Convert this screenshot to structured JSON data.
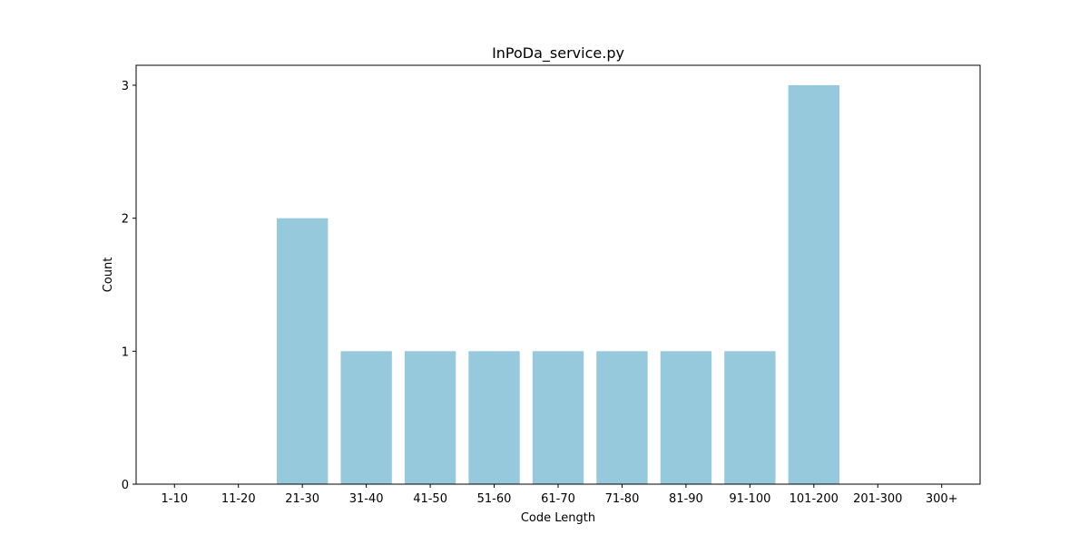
{
  "chart_data": {
    "type": "bar",
    "title": "InPoDa_service.py",
    "xlabel": "Code Length",
    "ylabel": "Count",
    "categories": [
      "1-10",
      "11-20",
      "21-30",
      "31-40",
      "41-50",
      "51-60",
      "61-70",
      "71-80",
      "81-90",
      "91-100",
      "101-200",
      "201-300",
      "300+"
    ],
    "values": [
      0,
      0,
      2,
      1,
      1,
      1,
      1,
      1,
      1,
      1,
      3,
      0,
      0
    ],
    "yticks": [
      0,
      1,
      2,
      3
    ],
    "ylim": [
      0,
      3.15
    ],
    "grid": false,
    "bar_color": "#96c9dc"
  }
}
